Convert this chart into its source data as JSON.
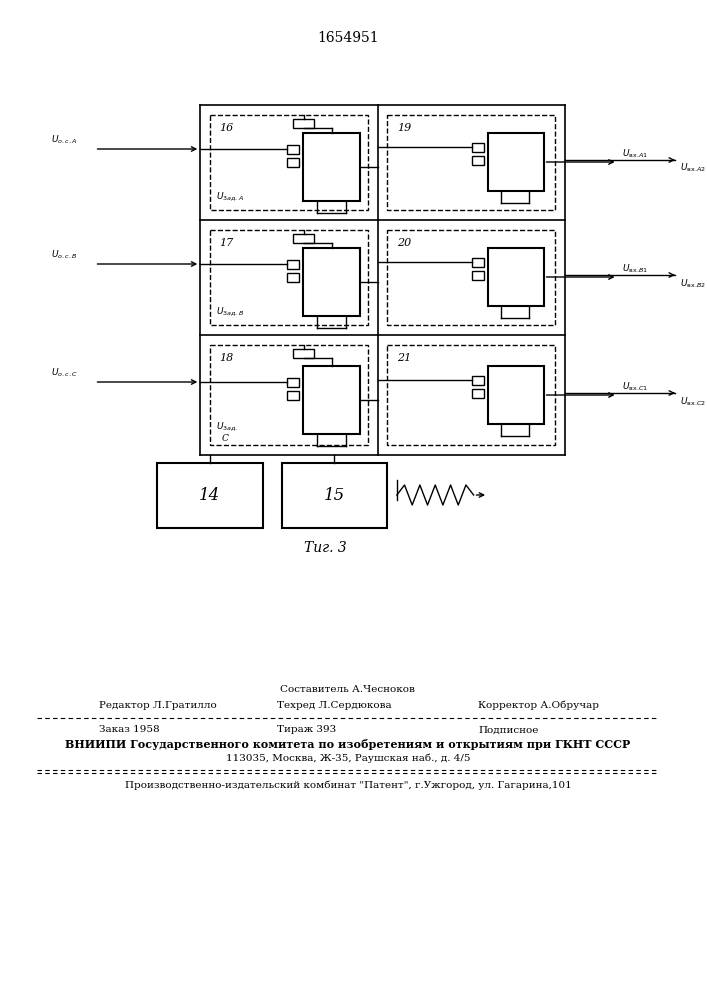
{
  "patent_number": "1654951",
  "fig_label": "Τиг. 3",
  "background_color": "#ffffff",
  "line_color": "#000000",
  "footer_line0": "Составитель А.Чесноков",
  "footer_line1_left": "Редактор Л.Гратилло",
  "footer_line1_mid": "Техред Л.Сердюкова",
  "footer_line1_right": "Корректор А.Обручар",
  "footer_line2_a": "Заказ 1958",
  "footer_line2_b": "Тираж 393",
  "footer_line2_c": "Подписное",
  "footer_line3": "ВНИИПИ Государственного комитета по изобретениям и открытиям при ГКНТ СССР",
  "footer_line4": "113035, Москва, Ж-35, Раушская наб., д. 4/5",
  "footer_line5": "Производственно-издательский комбинат \"Патент\", г.Ужгород, ул. Гагарина,101"
}
